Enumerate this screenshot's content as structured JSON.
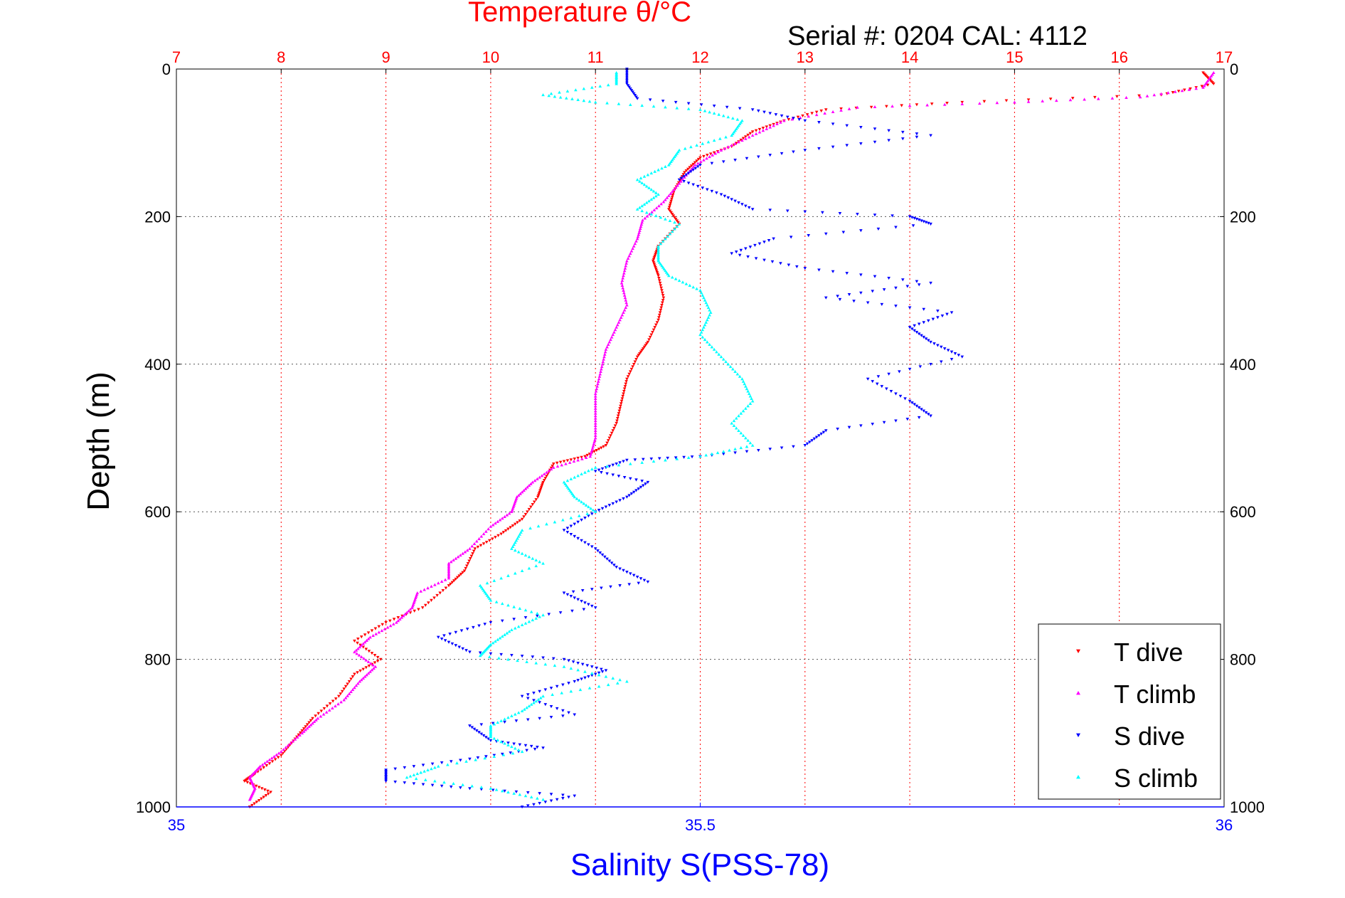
{
  "chart_data": {
    "type": "scatter",
    "title": "Temperature θ/°C",
    "subtitle": "Serial #: 0204  CAL: 4112",
    "xlabel": "Salinity S(PSS-78)",
    "ylabel": "Depth (m)",
    "x_top": {
      "label": "Temperature θ/°C",
      "range": [
        7,
        17
      ],
      "ticks": [
        7,
        8,
        9,
        10,
        11,
        12,
        13,
        14,
        15,
        16,
        17
      ]
    },
    "x_bottom": {
      "label": "Salinity S(PSS-78)",
      "range": [
        35,
        36
      ],
      "ticks": [
        "35",
        "35.5",
        "36"
      ]
    },
    "ylim": [
      0,
      1000
    ],
    "yticks": [
      0,
      200,
      400,
      600,
      800,
      1000
    ],
    "grid": true,
    "legend_position": "bottom-right",
    "colors": {
      "T dive": "#ff0000",
      "T climb": "#ff00ff",
      "S dive": "#0000ff",
      "S climb": "#00ffff"
    },
    "series": [
      {
        "name": "T dive",
        "axis": "temperature",
        "marker": "triangle-down",
        "points": [
          [
            16.8,
            5
          ],
          [
            16.9,
            20
          ],
          [
            16.4,
            35
          ],
          [
            14.5,
            45
          ],
          [
            13.2,
            55
          ],
          [
            12.8,
            70
          ],
          [
            12.5,
            85
          ],
          [
            12.3,
            105
          ],
          [
            12.0,
            120
          ],
          [
            11.85,
            140
          ],
          [
            11.75,
            165
          ],
          [
            11.7,
            190
          ],
          [
            11.8,
            210
          ],
          [
            11.6,
            240
          ],
          [
            11.55,
            260
          ],
          [
            11.6,
            280
          ],
          [
            11.65,
            310
          ],
          [
            11.6,
            340
          ],
          [
            11.5,
            370
          ],
          [
            11.4,
            390
          ],
          [
            11.3,
            420
          ],
          [
            11.25,
            450
          ],
          [
            11.2,
            480
          ],
          [
            11.1,
            510
          ],
          [
            10.9,
            525
          ],
          [
            10.6,
            535
          ],
          [
            10.5,
            560
          ],
          [
            10.45,
            580
          ],
          [
            10.3,
            610
          ],
          [
            10.1,
            630
          ],
          [
            9.85,
            650
          ],
          [
            9.75,
            680
          ],
          [
            9.6,
            700
          ],
          [
            9.35,
            730
          ],
          [
            9.0,
            750
          ],
          [
            8.7,
            775
          ],
          [
            8.95,
            800
          ],
          [
            8.7,
            820
          ],
          [
            8.55,
            850
          ],
          [
            8.3,
            880
          ],
          [
            8.15,
            905
          ],
          [
            8.0,
            930
          ],
          [
            7.75,
            955
          ],
          [
            7.65,
            965
          ],
          [
            7.9,
            980
          ],
          [
            7.7,
            1000
          ]
        ]
      },
      {
        "name": "T climb",
        "axis": "temperature",
        "marker": "triangle-up",
        "points": [
          [
            16.9,
            5
          ],
          [
            16.8,
            25
          ],
          [
            16.2,
            38
          ],
          [
            15.0,
            45
          ],
          [
            13.5,
            52
          ],
          [
            12.8,
            70
          ],
          [
            12.5,
            90
          ],
          [
            12.2,
            110
          ],
          [
            11.95,
            130
          ],
          [
            11.8,
            155
          ],
          [
            11.65,
            180
          ],
          [
            11.45,
            205
          ],
          [
            11.4,
            230
          ],
          [
            11.3,
            260
          ],
          [
            11.25,
            290
          ],
          [
            11.3,
            320
          ],
          [
            11.2,
            350
          ],
          [
            11.1,
            380
          ],
          [
            11.05,
            410
          ],
          [
            11.0,
            440
          ],
          [
            11.0,
            470
          ],
          [
            11.0,
            500
          ],
          [
            10.95,
            525
          ],
          [
            10.6,
            540
          ],
          [
            10.4,
            560
          ],
          [
            10.25,
            580
          ],
          [
            10.2,
            600
          ],
          [
            10.0,
            620
          ],
          [
            9.8,
            650
          ],
          [
            9.6,
            670
          ],
          [
            9.6,
            690
          ],
          [
            9.3,
            710
          ],
          [
            9.25,
            730
          ],
          [
            9.1,
            750
          ],
          [
            8.85,
            770
          ],
          [
            8.7,
            790
          ],
          [
            8.9,
            810
          ],
          [
            8.75,
            830
          ],
          [
            8.6,
            855
          ],
          [
            8.35,
            880
          ],
          [
            8.2,
            900
          ],
          [
            8.0,
            925
          ],
          [
            7.8,
            945
          ],
          [
            7.7,
            960
          ],
          [
            7.75,
            975
          ],
          [
            7.7,
            990
          ]
        ]
      },
      {
        "name": "S dive",
        "axis": "salinity",
        "marker": "triangle-down",
        "points": [
          [
            35.43,
            0
          ],
          [
            35.43,
            20
          ],
          [
            35.44,
            40
          ],
          [
            35.55,
            55
          ],
          [
            35.6,
            70
          ],
          [
            35.72,
            90
          ],
          [
            35.6,
            110
          ],
          [
            35.5,
            130
          ],
          [
            35.48,
            150
          ],
          [
            35.52,
            170
          ],
          [
            35.55,
            190
          ],
          [
            35.7,
            200
          ],
          [
            35.72,
            210
          ],
          [
            35.57,
            230
          ],
          [
            35.53,
            250
          ],
          [
            35.6,
            270
          ],
          [
            35.72,
            290
          ],
          [
            35.62,
            310
          ],
          [
            35.74,
            330
          ],
          [
            35.7,
            350
          ],
          [
            35.72,
            370
          ],
          [
            35.75,
            390
          ],
          [
            35.66,
            420
          ],
          [
            35.7,
            450
          ],
          [
            35.72,
            470
          ],
          [
            35.62,
            490
          ],
          [
            35.6,
            510
          ],
          [
            35.5,
            525
          ],
          [
            35.43,
            530
          ],
          [
            35.4,
            545
          ],
          [
            35.45,
            560
          ],
          [
            35.43,
            580
          ],
          [
            35.4,
            600
          ],
          [
            35.37,
            625
          ],
          [
            35.4,
            650
          ],
          [
            35.42,
            675
          ],
          [
            35.45,
            695
          ],
          [
            35.37,
            710
          ],
          [
            35.4,
            730
          ],
          [
            35.3,
            750
          ],
          [
            35.25,
            770
          ],
          [
            35.28,
            790
          ],
          [
            35.37,
            800
          ],
          [
            35.41,
            815
          ],
          [
            35.38,
            830
          ],
          [
            35.33,
            850
          ],
          [
            35.38,
            875
          ],
          [
            35.28,
            890
          ],
          [
            35.3,
            910
          ],
          [
            35.35,
            920
          ],
          [
            35.28,
            935
          ],
          [
            35.2,
            950
          ],
          [
            35.2,
            965
          ],
          [
            35.28,
            975
          ],
          [
            35.38,
            985
          ],
          [
            35.33,
            1000
          ]
        ]
      },
      {
        "name": "S climb",
        "axis": "salinity",
        "marker": "triangle-up",
        "points": [
          [
            35.42,
            5
          ],
          [
            35.42,
            20
          ],
          [
            35.35,
            35
          ],
          [
            35.4,
            45
          ],
          [
            35.5,
            55
          ],
          [
            35.54,
            70
          ],
          [
            35.53,
            90
          ],
          [
            35.48,
            110
          ],
          [
            35.47,
            130
          ],
          [
            35.44,
            150
          ],
          [
            35.46,
            170
          ],
          [
            35.44,
            190
          ],
          [
            35.48,
            210
          ],
          [
            35.46,
            240
          ],
          [
            35.46,
            260
          ],
          [
            35.47,
            280
          ],
          [
            35.5,
            300
          ],
          [
            35.51,
            330
          ],
          [
            35.5,
            360
          ],
          [
            35.52,
            390
          ],
          [
            35.54,
            420
          ],
          [
            35.55,
            450
          ],
          [
            35.53,
            480
          ],
          [
            35.55,
            510
          ],
          [
            35.5,
            525
          ],
          [
            35.4,
            540
          ],
          [
            35.37,
            560
          ],
          [
            35.38,
            580
          ],
          [
            35.4,
            600
          ],
          [
            35.33,
            625
          ],
          [
            35.32,
            650
          ],
          [
            35.35,
            670
          ],
          [
            35.29,
            700
          ],
          [
            35.3,
            720
          ],
          [
            35.35,
            740
          ],
          [
            35.32,
            760
          ],
          [
            35.3,
            780
          ],
          [
            35.29,
            795
          ],
          [
            35.37,
            810
          ],
          [
            35.43,
            830
          ],
          [
            35.35,
            850
          ],
          [
            35.33,
            870
          ],
          [
            35.3,
            890
          ],
          [
            35.3,
            905
          ],
          [
            35.33,
            925
          ],
          [
            35.25,
            945
          ],
          [
            35.22,
            960
          ],
          [
            35.3,
            975
          ],
          [
            35.35,
            990
          ]
        ]
      }
    ]
  }
}
